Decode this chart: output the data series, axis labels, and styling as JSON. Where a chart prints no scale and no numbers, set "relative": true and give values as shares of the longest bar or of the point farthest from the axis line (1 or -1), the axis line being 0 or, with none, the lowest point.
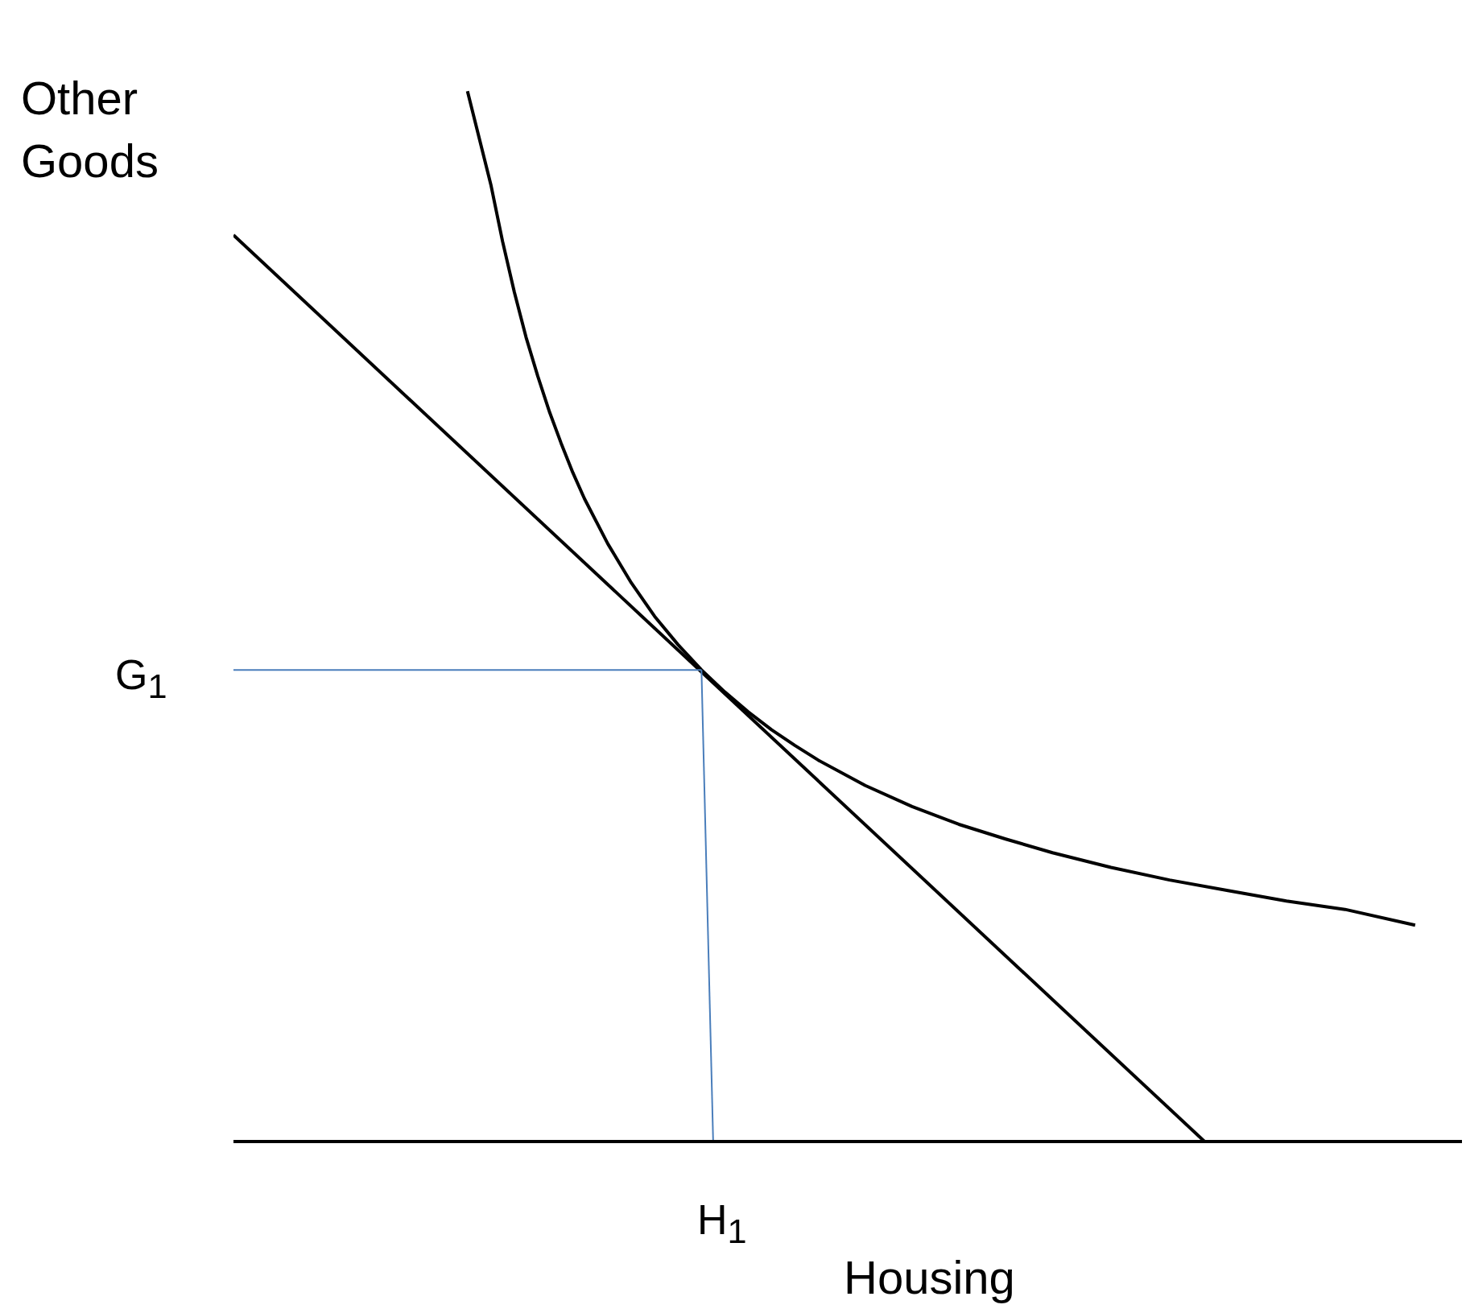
{
  "chart_data": {
    "type": "line",
    "relative": true,
    "ylabel": "Other\nGoods",
    "xlabel": "Housing",
    "marker": "none",
    "annotations": [
      "G$_{1}$",
      "H$_{1}$"
    ],
    "categories": [
      null,
      null,
      null,
      null,
      null,
      null,
      null,
      null,
      null,
      null,
      null,
      null,
      null,
      null,
      null,
      null,
      null,
      null,
      null,
      null,
      null,
      null,
      null,
      null,
      null,
      null,
      null,
      null,
      null,
      null,
      null,
      null,
      null,
      null,
      null,
      null,
      null,
      null,
      null,
      null,
      null,
      null,
      null,
      null,
      null,
      null,
      null,
      null,
      null,
      null,
      null,
      null,
      null,
      null,
      null,
      null,
      null,
      null,
      null,
      null,
      null,
      null,
      null,
      null,
      null,
      null,
      null,
      null,
      null,
      null,
      null,
      null,
      null,
      null,
      null,
      null,
      null,
      null,
      null,
      null,
      null,
      null,
      null,
      null,
      null,
      null,
      null,
      null,
      null,
      null,
      null,
      null,
      null,
      null,
      null,
      null,
      null,
      null,
      null,
      null,
      null,
      null,
      null,
      null,
      null,
      null
    ],
    "series": [
      {
        "color": "#000000",
        "values": [
          0.863,
          null,
          null,
          null,
          null,
          null,
          null,
          null,
          null,
          null,
          null,
          null,
          null,
          null,
          null,
          null,
          null,
          null,
          null,
          null,
          null,
          null,
          null,
          null,
          null,
          null,
          null,
          null,
          null,
          null,
          null,
          null,
          null,
          null,
          null,
          null,
          null,
          null,
          null,
          null,
          null,
          null,
          null,
          null,
          null,
          null,
          null,
          null,
          null,
          null,
          null,
          null,
          null,
          null,
          null,
          null,
          null,
          null,
          null,
          null,
          null,
          null,
          null,
          null,
          null,
          null,
          null,
          null,
          null,
          null,
          null,
          null,
          null,
          null,
          null,
          null,
          null,
          null,
          null,
          null,
          null,
          null,
          null,
          0,
          null,
          null,
          null,
          null,
          null,
          null,
          null,
          null,
          null,
          null,
          null,
          null,
          null,
          null,
          null,
          null,
          null,
          null,
          null,
          null,
          null,
          null
        ]
      },
      {
        "color": "#000000",
        "values": [
          null,
          null,
          null,
          null,
          null,
          null,
          null,
          null,
          null,
          null,
          null,
          null,
          null,
          null,
          null,
          null,
          null,
          null,
          null,
          null,
          1,
          null,
          0.911,
          0.857,
          0.809,
          0.766,
          0.729,
          0.695,
          0.665,
          0.637,
          0.612,
          null,
          0.569,
          null,
          0.532,
          null,
          0.5,
          null,
          0.473,
          null,
          0.449,
          null,
          0.428,
          null,
          0.409,
          null,
          0.392,
          null,
          0.377,
          null,
          0.363,
          null,
          null,
          null,
          0.339,
          null,
          null,
          null,
          0.319,
          null,
          null,
          null,
          0.302,
          null,
          null,
          null,
          0.288,
          null,
          null,
          null,
          0.275,
          null,
          null,
          null,
          null,
          0.261,
          null,
          null,
          null,
          null,
          0.249,
          null,
          null,
          null,
          null,
          0.239,
          null,
          null,
          null,
          null,
          0.229,
          null,
          null,
          null,
          null,
          0.221,
          null,
          null,
          null,
          null,
          null,
          0.206,
          null,
          null,
          null,
          null
        ]
      },
      {
        "color": "#4a7ebb",
        "values": [
          0.449,
          null,
          null,
          null,
          null,
          null,
          null,
          null,
          null,
          null,
          null,
          null,
          null,
          null,
          null,
          null,
          null,
          null,
          null,
          null,
          null,
          null,
          null,
          null,
          null,
          null,
          null,
          null,
          null,
          null,
          null,
          null,
          null,
          null,
          null,
          null,
          null,
          null,
          null,
          null,
          0.449,
          null,
          null,
          null,
          null,
          null,
          null,
          null,
          null,
          null,
          null,
          null,
          null,
          null,
          null,
          null,
          null,
          null,
          null,
          null,
          null,
          null,
          null,
          null,
          null,
          null,
          null,
          null,
          null,
          null,
          null,
          null,
          null,
          null,
          null,
          null,
          null,
          null,
          null,
          null,
          null,
          null,
          null,
          null,
          null,
          null,
          null,
          null,
          null,
          null,
          null,
          null,
          null,
          null,
          null,
          null,
          null,
          null,
          null,
          null,
          null,
          null,
          null,
          null,
          null,
          null
        ]
      },
      {
        "color": "#4a7ebb",
        "values": [
          null,
          null,
          null,
          null,
          null,
          null,
          null,
          null,
          null,
          null,
          null,
          null,
          null,
          null,
          null,
          null,
          null,
          null,
          null,
          null,
          null,
          null,
          null,
          null,
          null,
          null,
          null,
          null,
          null,
          null,
          null,
          null,
          null,
          null,
          null,
          null,
          null,
          null,
          null,
          null,
          0.449,
          0,
          null,
          null,
          null,
          null,
          null,
          null,
          null,
          null,
          null,
          null,
          null,
          null,
          null,
          null,
          null,
          null,
          null,
          null,
          null,
          null,
          null,
          null,
          null,
          null,
          null,
          null,
          null,
          null,
          null,
          null,
          null,
          null,
          null,
          null,
          null,
          null,
          null,
          null,
          null,
          null,
          null,
          null,
          null,
          null,
          null,
          null,
          null,
          null,
          null,
          null,
          null,
          null,
          null,
          null,
          null,
          null,
          null,
          null,
          null,
          null,
          null,
          null,
          null,
          null
        ]
      }
    ]
  }
}
